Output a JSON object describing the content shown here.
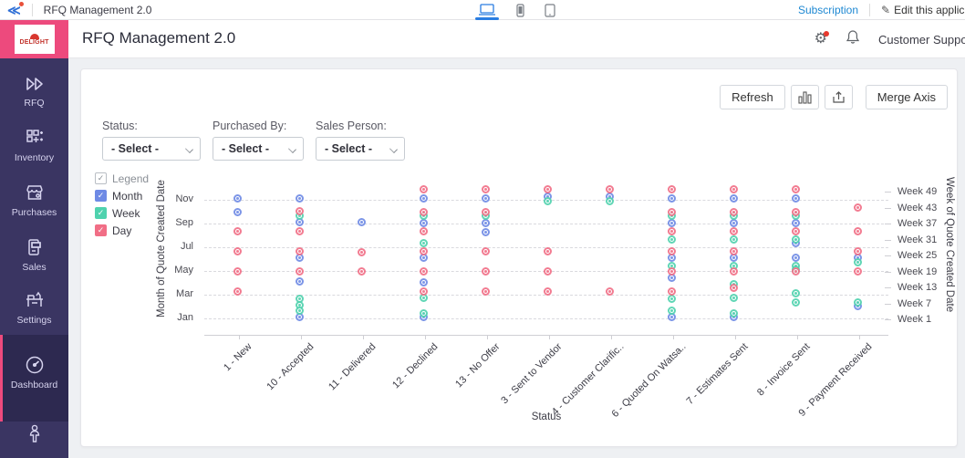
{
  "topbar": {
    "app_title": "RFQ Management 2.0",
    "subscription_label": "Subscription",
    "edit_label": "Edit this applic",
    "devices": [
      "laptop",
      "phone",
      "tablet"
    ]
  },
  "header": {
    "logo_text": "DELIGHT",
    "title": "RFQ Management 2.0",
    "support_label": "Customer Suppor"
  },
  "sidebar": {
    "accent_color": "#ed4a7d",
    "bg_color": "#3a3562",
    "items": [
      {
        "label": "RFQ",
        "icon": "fast-forward-icon",
        "active": false
      },
      {
        "label": "Inventory",
        "icon": "grid-icon",
        "active": false
      },
      {
        "label": "Purchases",
        "icon": "store-icon",
        "active": false
      },
      {
        "label": "Sales",
        "icon": "card-machine-icon",
        "active": false
      },
      {
        "label": "Settings",
        "icon": "tools-icon",
        "active": false
      },
      {
        "label": "Dashboard",
        "icon": "speedometer-icon",
        "active": true
      },
      {
        "label": "",
        "icon": "person-icon",
        "active": false
      }
    ]
  },
  "toolbar": {
    "refresh_label": "Refresh",
    "chart_type_icon": "bar-chart-icon",
    "export_icon": "export-icon",
    "merge_label": "Merge Axis"
  },
  "filters": [
    {
      "label": "Status:",
      "value": "- Select -"
    },
    {
      "label": "Purchased By:",
      "value": "- Select -"
    },
    {
      "label": "Sales Person:",
      "value": "- Select -"
    }
  ],
  "legend": {
    "title": "Legend",
    "items": [
      {
        "label": "Month",
        "color": "#6e8ae5"
      },
      {
        "label": "Week",
        "color": "#4fd2ae"
      },
      {
        "label": "Day",
        "color": "#f16e86"
      }
    ]
  },
  "chart_data": {
    "type": "scatter",
    "xlabel": "Status",
    "y_left_label": "Month of Quote Created Date",
    "y_right_label": "Week of Quote Created Date",
    "categories": [
      "1 - New",
      "10 - Accepted",
      "11 - Delivered",
      "12 - Declined",
      "13 - No Offer",
      "3 - Sent to Vendor",
      "4 - Customer Clarific..",
      "6 - Quoted On Watsa..",
      "7 - Estimates Sent",
      "8 - Invoice Sent",
      "9 - Payment Received"
    ],
    "y_left_ticks": [
      "Nov",
      "Sep",
      "Jul",
      "May",
      "Mar",
      "Jan"
    ],
    "y_right_ticks": [
      "Week 49",
      "Week 43",
      "Week 37",
      "Week 31",
      "Week 25",
      "Week 19",
      "Week 13",
      "Week 7",
      "Week 1"
    ],
    "value_scale": "points are [categoryIndex, monthPosition] with 1=Jan .. 12=Dec",
    "grid": true,
    "legend_position": "left",
    "series": [
      {
        "name": "Month",
        "color": "#6e8ae5",
        "points": [
          [
            0,
            11
          ],
          [
            0,
            9.8
          ],
          [
            1,
            11
          ],
          [
            1,
            9
          ],
          [
            1,
            6
          ],
          [
            1,
            4
          ],
          [
            1,
            1
          ],
          [
            2,
            9
          ],
          [
            3,
            11
          ],
          [
            3,
            8.9
          ],
          [
            3,
            6
          ],
          [
            3,
            3.9
          ],
          [
            3,
            1
          ],
          [
            4,
            11
          ],
          [
            4,
            8.9
          ],
          [
            4,
            8.1
          ],
          [
            5,
            11.1
          ],
          [
            6,
            11.1
          ],
          [
            7,
            11
          ],
          [
            7,
            8.9
          ],
          [
            7,
            6
          ],
          [
            7,
            4.3
          ],
          [
            7,
            1
          ],
          [
            8,
            11
          ],
          [
            8,
            8.9
          ],
          [
            8,
            6
          ],
          [
            8,
            1
          ],
          [
            9,
            11
          ],
          [
            9,
            8.9
          ],
          [
            9,
            7.2
          ],
          [
            9,
            6
          ],
          [
            10,
            6
          ],
          [
            10,
            1.9
          ]
        ]
      },
      {
        "name": "Week",
        "color": "#4fd2ae",
        "points": [
          [
            1,
            9.5
          ],
          [
            1,
            2.5
          ],
          [
            1,
            2
          ],
          [
            1,
            1.5
          ],
          [
            3,
            9.5
          ],
          [
            3,
            7.2
          ],
          [
            3,
            2.6
          ],
          [
            3,
            1.3
          ],
          [
            4,
            9.5
          ],
          [
            5,
            10.7
          ],
          [
            6,
            10.7
          ],
          [
            7,
            9.5
          ],
          [
            7,
            7.5
          ],
          [
            7,
            5.3
          ],
          [
            7,
            2.5
          ],
          [
            7,
            1.5
          ],
          [
            8,
            9.5
          ],
          [
            8,
            7.5
          ],
          [
            8,
            5.3
          ],
          [
            8,
            3.7
          ],
          [
            8,
            2.6
          ],
          [
            8,
            1.3
          ],
          [
            9,
            9.5
          ],
          [
            9,
            7.5
          ],
          [
            9,
            5.3
          ],
          [
            9,
            5
          ],
          [
            9,
            3
          ],
          [
            9,
            2.2
          ],
          [
            10,
            5.6
          ],
          [
            10,
            2.2
          ]
        ]
      },
      {
        "name": "Day",
        "color": "#f16e86",
        "points": [
          [
            0,
            8.2
          ],
          [
            0,
            6.5
          ],
          [
            0,
            4.8
          ],
          [
            0,
            3.1
          ],
          [
            1,
            9.9
          ],
          [
            1,
            8.2
          ],
          [
            1,
            6.5
          ],
          [
            1,
            4.8
          ],
          [
            2,
            6.4
          ],
          [
            2,
            4.8
          ],
          [
            3,
            11.7
          ],
          [
            3,
            9.8
          ],
          [
            3,
            8.2
          ],
          [
            3,
            6.5
          ],
          [
            3,
            4.8
          ],
          [
            3,
            3.1
          ],
          [
            4,
            11.7
          ],
          [
            4,
            9.8
          ],
          [
            4,
            6.5
          ],
          [
            4,
            4.8
          ],
          [
            4,
            3.1
          ],
          [
            5,
            11.7
          ],
          [
            5,
            6.5
          ],
          [
            5,
            4.8
          ],
          [
            5,
            3.1
          ],
          [
            6,
            11.7
          ],
          [
            6,
            3.1
          ],
          [
            7,
            11.7
          ],
          [
            7,
            9.8
          ],
          [
            7,
            8.2
          ],
          [
            7,
            6.5
          ],
          [
            7,
            4.8
          ],
          [
            7,
            3.1
          ],
          [
            8,
            11.7
          ],
          [
            8,
            9.8
          ],
          [
            8,
            8.2
          ],
          [
            8,
            6.5
          ],
          [
            8,
            4.8
          ],
          [
            8,
            3.4
          ],
          [
            9,
            11.7
          ],
          [
            9,
            9.8
          ],
          [
            9,
            8.2
          ],
          [
            9,
            4.8
          ],
          [
            10,
            10.2
          ],
          [
            10,
            8.2
          ],
          [
            10,
            6.5
          ],
          [
            10,
            4.8
          ]
        ]
      }
    ]
  }
}
